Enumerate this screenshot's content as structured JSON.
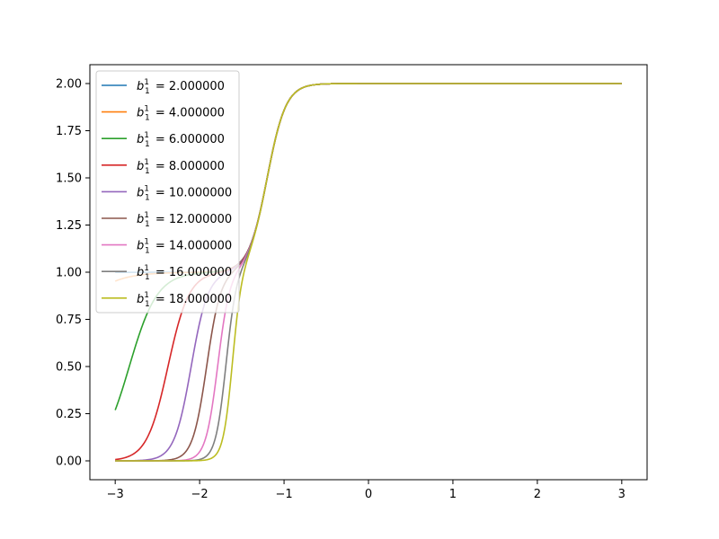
{
  "chart_data": {
    "type": "line",
    "xlim": [
      -3.3,
      3.3
    ],
    "ylim": [
      -0.1,
      2.1
    ],
    "x_ticks": [
      -3,
      -2,
      -1,
      0,
      1,
      2,
      3
    ],
    "x_tick_labels": [
      "−3",
      "−2",
      "−1",
      "0",
      "1",
      "2",
      "3"
    ],
    "y_ticks": [
      0.0,
      0.25,
      0.5,
      0.75,
      1.0,
      1.25,
      1.5,
      1.75,
      2.0
    ],
    "y_tick_labels": [
      "0.00",
      "0.25",
      "0.50",
      "0.75",
      "1.00",
      "1.25",
      "1.50",
      "1.75",
      "2.00"
    ],
    "grid": false,
    "legend_position": "top-left",
    "x_range": [
      -3,
      3
    ],
    "series": [
      {
        "name": "b_1^1 = 2.000000",
        "value_text": "2.000000",
        "color": "#1f77b4",
        "b": 2
      },
      {
        "name": "b_1^1 = 4.000000",
        "value_text": "4.000000",
        "color": "#ff7f0e",
        "b": 4
      },
      {
        "name": "b_1^1 = 6.000000",
        "value_text": "6.000000",
        "color": "#2ca02c",
        "b": 6
      },
      {
        "name": "b_1^1 = 8.000000",
        "value_text": "8.000000",
        "color": "#d62728",
        "b": 8
      },
      {
        "name": "b_1^1 = 10.000000",
        "value_text": "10.000000",
        "color": "#9467bd",
        "b": 10
      },
      {
        "name": "b_1^1 = 12.000000",
        "value_text": "12.000000",
        "color": "#8c564b",
        "b": 12
      },
      {
        "name": "b_1^1 = 14.000000",
        "value_text": "14.000000",
        "color": "#e377c2",
        "b": 14
      },
      {
        "name": "b_1^1 = 16.000000",
        "value_text": "16.000000",
        "color": "#7f7f7f",
        "b": 16
      },
      {
        "name": "b_1^1 = 18.000000",
        "value_text": "18.000000",
        "color": "#bcbd22",
        "b": 18
      }
    ]
  }
}
